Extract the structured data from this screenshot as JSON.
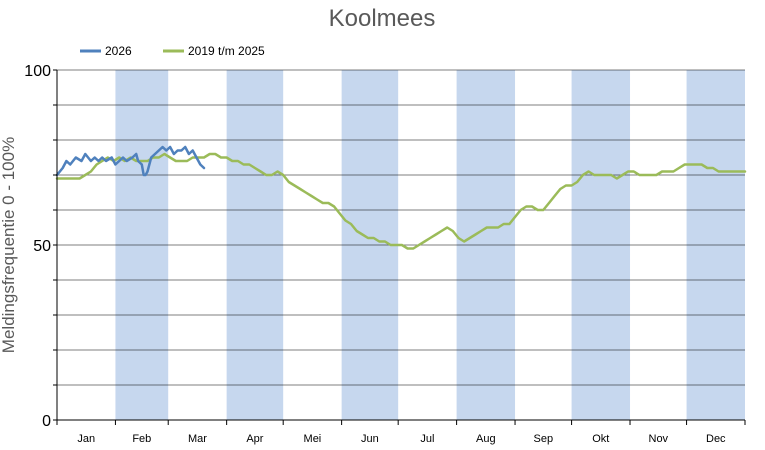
{
  "chart_data": {
    "type": "line",
    "title": "Koolmees",
    "ylabel": "Meldingsfrequentie 0 - 100%",
    "xlabel": "",
    "ylim": [
      0,
      100
    ],
    "xlim": [
      0,
      365
    ],
    "yticks": [
      0,
      50,
      100
    ],
    "grid": true,
    "legend_position": "top-left",
    "months": [
      "Jan",
      "Feb",
      "Mar",
      "Apr",
      "Mei",
      "Jun",
      "Jul",
      "Aug",
      "Sep",
      "Okt",
      "Nov",
      "Dec"
    ],
    "month_start_days": [
      0,
      31,
      59,
      90,
      120,
      151,
      181,
      212,
      243,
      273,
      304,
      334
    ],
    "series": [
      {
        "name": "2026",
        "color": "#4f81bd",
        "x": [
          0,
          3,
          5,
          7,
          10,
          13,
          15,
          18,
          20,
          22,
          24,
          26,
          29,
          31,
          33,
          35,
          37,
          40,
          42,
          43,
          45,
          46,
          47,
          48,
          50,
          52,
          54,
          56,
          58,
          60,
          62,
          64,
          66,
          68,
          70,
          72,
          74,
          76,
          78
        ],
        "values": [
          70,
          72,
          74,
          73,
          75,
          74,
          76,
          74,
          75,
          74,
          75,
          74,
          75,
          73,
          74,
          75,
          74,
          75,
          76,
          74,
          73,
          70,
          70,
          71,
          75,
          76,
          77,
          78,
          77,
          78,
          76,
          77,
          77,
          78,
          76,
          77,
          75,
          73,
          72
        ]
      },
      {
        "name": "2019 t/m 2025",
        "color": "#9bbb59",
        "x": [
          0,
          3,
          6,
          9,
          12,
          15,
          18,
          21,
          24,
          27,
          30,
          33,
          36,
          39,
          42,
          45,
          48,
          51,
          54,
          57,
          60,
          63,
          66,
          69,
          72,
          75,
          78,
          81,
          84,
          87,
          90,
          93,
          96,
          99,
          102,
          105,
          108,
          111,
          114,
          117,
          120,
          123,
          126,
          129,
          132,
          135,
          138,
          141,
          144,
          147,
          150,
          153,
          156,
          159,
          162,
          165,
          168,
          171,
          174,
          177,
          180,
          183,
          186,
          189,
          192,
          195,
          198,
          201,
          204,
          207,
          210,
          213,
          216,
          219,
          222,
          225,
          228,
          231,
          234,
          237,
          240,
          243,
          246,
          249,
          252,
          255,
          258,
          261,
          264,
          267,
          270,
          273,
          276,
          279,
          282,
          285,
          288,
          291,
          294,
          297,
          300,
          303,
          306,
          309,
          312,
          315,
          318,
          321,
          324,
          327,
          330,
          333,
          336,
          339,
          342,
          345,
          348,
          351,
          354,
          357,
          360,
          363,
          365
        ],
        "values": [
          69,
          69,
          69,
          69,
          69,
          70,
          71,
          73,
          74,
          75,
          74,
          75,
          74,
          75,
          74,
          74,
          74,
          75,
          75,
          76,
          75,
          74,
          74,
          74,
          75,
          75,
          75,
          76,
          76,
          75,
          75,
          74,
          74,
          73,
          73,
          72,
          71,
          70,
          70,
          71,
          70,
          68,
          67,
          66,
          65,
          64,
          63,
          62,
          62,
          61,
          59,
          57,
          56,
          54,
          53,
          52,
          52,
          51,
          51,
          50,
          50,
          50,
          49,
          49,
          50,
          51,
          52,
          53,
          54,
          55,
          54,
          52,
          51,
          52,
          53,
          54,
          55,
          55,
          55,
          56,
          56,
          58,
          60,
          61,
          61,
          60,
          60,
          62,
          64,
          66,
          67,
          67,
          68,
          70,
          71,
          70,
          70,
          70,
          70,
          69,
          70,
          71,
          71,
          70,
          70,
          70,
          70,
          71,
          71,
          71,
          72,
          73,
          73,
          73,
          73,
          72,
          72,
          71,
          71,
          71,
          71,
          71,
          71
        ]
      }
    ],
    "band_color": "#c6d7ee",
    "grid_color": "#000000"
  }
}
